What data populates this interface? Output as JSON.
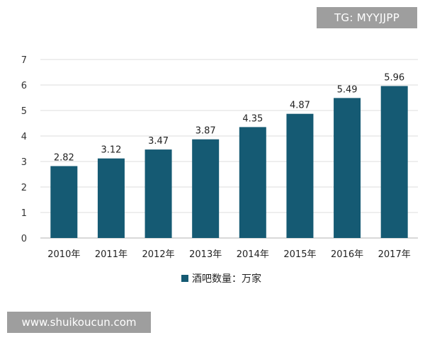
{
  "watermarks": {
    "top": "TG: MYYJJPP",
    "bottom": "www.shuikoucun.com"
  },
  "chart_data": {
    "type": "bar",
    "categories": [
      "2010年",
      "2011年",
      "2012年",
      "2013年",
      "2014年",
      "2015年",
      "2016年",
      "2017年"
    ],
    "series": [
      {
        "name": "酒吧数量：万家",
        "values": [
          2.82,
          3.12,
          3.47,
          3.87,
          4.35,
          4.87,
          5.49,
          5.96
        ],
        "labels": [
          "2.82",
          "3.12",
          "3.47",
          "3.87",
          "4.35",
          "4.87",
          "5.49",
          "5.96"
        ],
        "color": "#155a73"
      }
    ],
    "ylim": [
      0,
      7
    ],
    "yticks": [
      "0",
      "1",
      "2",
      "3",
      "4",
      "5",
      "6",
      "7"
    ],
    "grid": true,
    "legend": "bottom-center"
  }
}
